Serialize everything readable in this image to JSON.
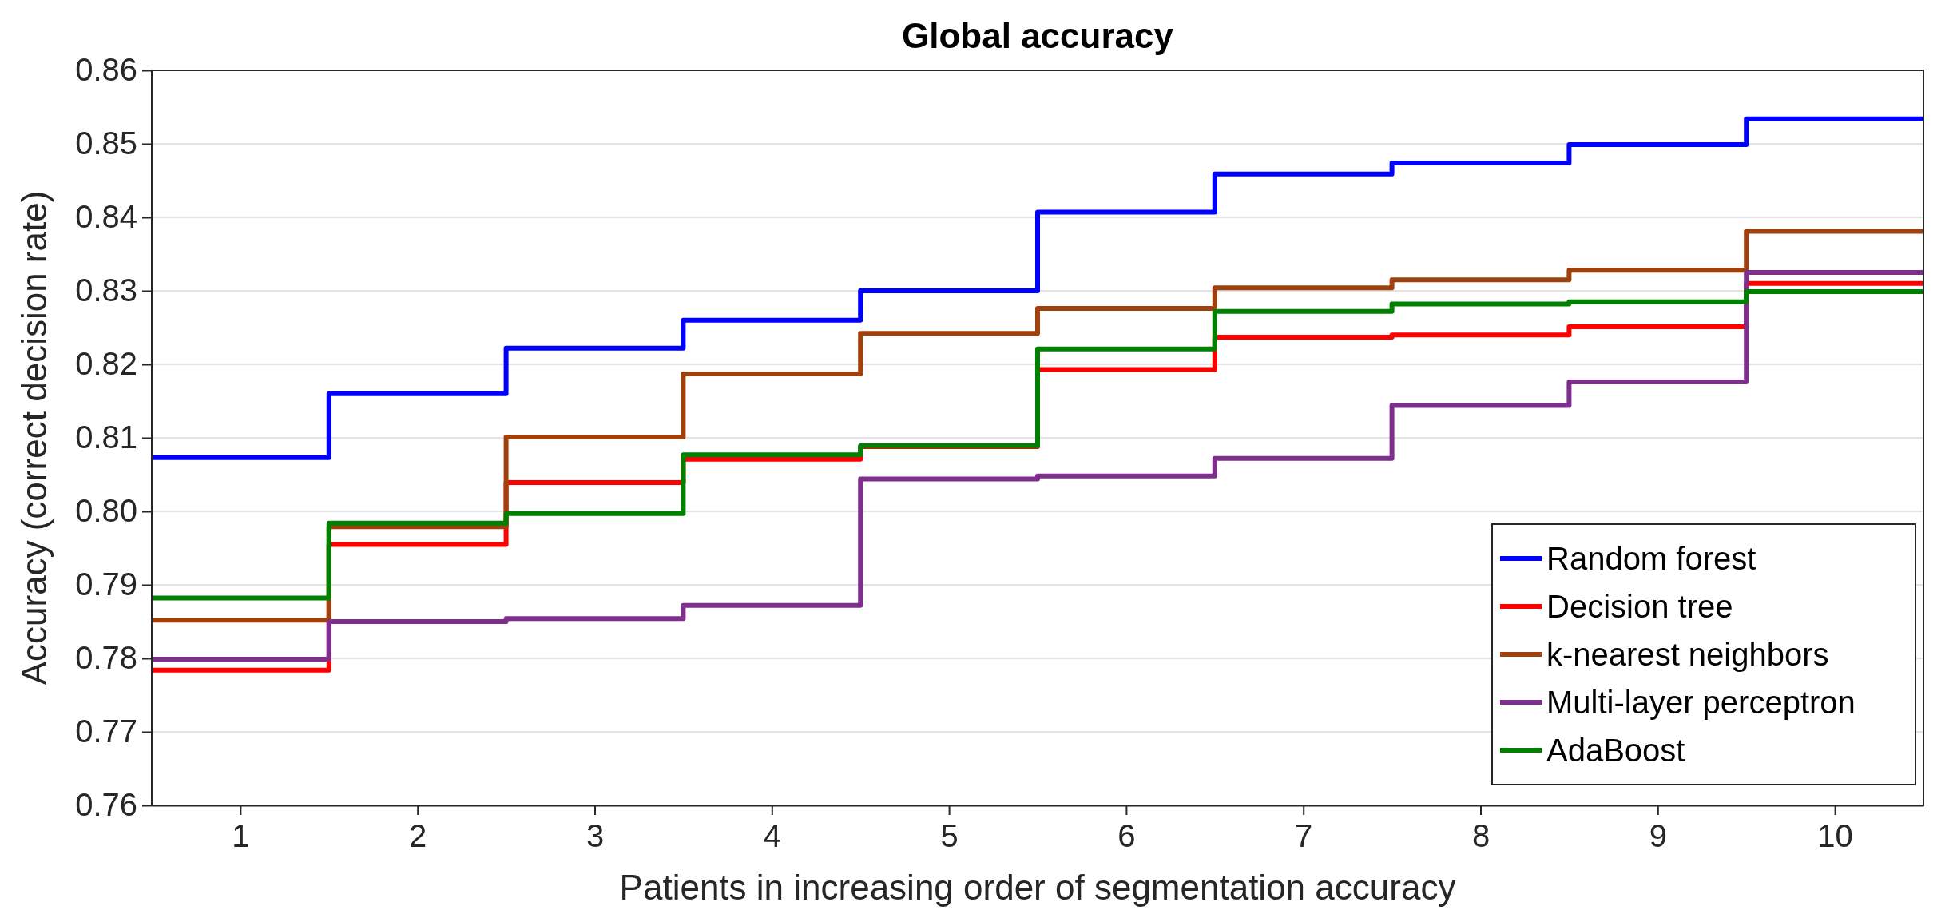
{
  "chart_data": {
    "type": "step",
    "title": "Global accuracy",
    "xlabel": "Patients in increasing order of segmentation accuracy",
    "ylabel": "Accuracy (correct decision rate)",
    "x": [
      0.5,
      1.5,
      2.5,
      3.5,
      4.5,
      5.5,
      6.5,
      7.5,
      8.5,
      9.5,
      10.5
    ],
    "series": [
      {
        "name": "Random forest",
        "color": "#0000ff",
        "values": [
          0.8073,
          0.816,
          0.8222,
          0.826,
          0.83,
          0.8407,
          0.8459,
          0.8474,
          0.8499,
          0.8534,
          0.8534
        ]
      },
      {
        "name": "Decision tree",
        "color": "#ff0000",
        "values": [
          0.7784,
          0.7955,
          0.8039,
          0.8071,
          0.8088,
          0.8193,
          0.8237,
          0.824,
          0.8251,
          0.831,
          0.831
        ]
      },
      {
        "name": "k-nearest neighbors",
        "color": "#a0410d",
        "values": [
          0.7852,
          0.7979,
          0.8101,
          0.8187,
          0.8242,
          0.8276,
          0.8304,
          0.8315,
          0.8328,
          0.8381,
          0.8381
        ]
      },
      {
        "name": "Multi-layer perceptron",
        "color": "#7e2f8e",
        "values": [
          0.7799,
          0.785,
          0.7854,
          0.7872,
          0.8044,
          0.8048,
          0.8072,
          0.8144,
          0.8176,
          0.8325,
          0.8325
        ]
      },
      {
        "name": "AdaBoost",
        "color": "#008000",
        "values": [
          0.7882,
          0.7984,
          0.7997,
          0.8077,
          0.8089,
          0.8221,
          0.8272,
          0.8282,
          0.8285,
          0.8299,
          0.8299
        ]
      }
    ],
    "xlim": [
      0.5,
      10.5
    ],
    "xticks": [
      1,
      2,
      3,
      4,
      5,
      6,
      7,
      8,
      9,
      10
    ],
    "ylim": [
      0.76,
      0.86
    ],
    "yticks": [
      {
        "value": 0.76,
        "label": "0.76"
      },
      {
        "value": 0.77,
        "label": "0.77"
      },
      {
        "value": 0.78,
        "label": "0.78"
      },
      {
        "value": 0.79,
        "label": "0.79"
      },
      {
        "value": 0.8,
        "label": "0.80"
      },
      {
        "value": 0.81,
        "label": "0.81"
      },
      {
        "value": 0.82,
        "label": "0.82"
      },
      {
        "value": 0.83,
        "label": "0.83"
      },
      {
        "value": 0.84,
        "label": "0.84"
      },
      {
        "value": 0.85,
        "label": "0.85"
      },
      {
        "value": 0.86,
        "label": "0.86"
      }
    ],
    "grid": "y",
    "legend": "bottom right",
    "line_style": "solid"
  }
}
